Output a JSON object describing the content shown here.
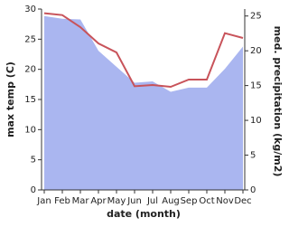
{
  "chart_data": {
    "type": "line-area",
    "categories": [
      "Jan",
      "Feb",
      "Mar",
      "Apr",
      "May",
      "Jun",
      "Jul",
      "Aug",
      "Sep",
      "Oct",
      "Nov",
      "Dec"
    ],
    "x_label": "date (month)",
    "y_label": "max temp (C)",
    "y2_label": "med. precipitation (kg/m2)",
    "ylim": [
      0,
      30
    ],
    "yticks": [
      0,
      5,
      10,
      15,
      20,
      25,
      30
    ],
    "y2lim": [
      0,
      26
    ],
    "y2ticks": [
      0,
      5,
      10,
      15,
      20,
      25
    ],
    "series": [
      {
        "name": "med. precipitation",
        "type": "area",
        "axis": "y2",
        "color": "#aab6f0",
        "values": [
          25.0,
          24.6,
          24.5,
          20.0,
          17.7,
          15.4,
          15.6,
          14.1,
          14.7,
          14.7,
          17.4,
          20.6
        ]
      },
      {
        "name": "max temp",
        "type": "line",
        "color": "#c8535a",
        "values": [
          29.3,
          29.0,
          27.0,
          24.3,
          22.8,
          17.2,
          17.4,
          17.1,
          18.3,
          18.3,
          26.0,
          25.2
        ]
      }
    ]
  }
}
